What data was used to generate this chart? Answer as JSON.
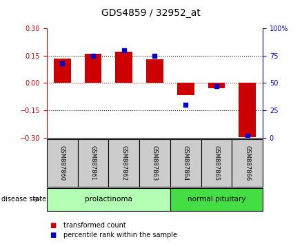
{
  "title": "GDS4859 / 32952_at",
  "samples": [
    "GSM887860",
    "GSM887861",
    "GSM887862",
    "GSM887863",
    "GSM887864",
    "GSM887865",
    "GSM887866"
  ],
  "transformed_count": [
    0.135,
    0.16,
    0.17,
    0.128,
    -0.065,
    -0.03,
    -0.295
  ],
  "percentile_rank": [
    68,
    75,
    80,
    75,
    30,
    47,
    2
  ],
  "ylim_left": [
    -0.3,
    0.3
  ],
  "ylim_right": [
    0,
    100
  ],
  "yticks_left": [
    -0.3,
    -0.15,
    0,
    0.15,
    0.3
  ],
  "yticks_right": [
    0,
    25,
    50,
    75,
    100
  ],
  "groups": [
    {
      "label": "prolactinoma",
      "indices": [
        0,
        1,
        2,
        3
      ],
      "color": "#b3ffb3"
    },
    {
      "label": "normal pituitary",
      "indices": [
        4,
        5,
        6
      ],
      "color": "#44dd44"
    }
  ],
  "group_label_prefix": "disease state",
  "bar_color": "#cc0000",
  "dot_color": "#0000cc",
  "background_color": "#ffffff",
  "plot_bg_color": "#ffffff",
  "sample_box_color": "#cccccc",
  "left_tick_color": "#cc0000",
  "right_tick_color": "#0000cc"
}
